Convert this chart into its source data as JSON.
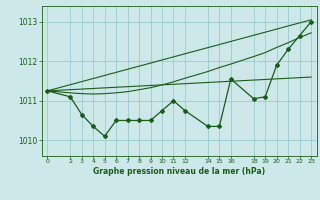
{
  "bg_color": "#cce8e8",
  "grid_color": "#99cccc",
  "line_color": "#1a5c1a",
  "xlabel": "Graphe pression niveau de la mer (hPa)",
  "ylim": [
    1009.6,
    1013.4
  ],
  "xlim": [
    -0.5,
    23.5
  ],
  "yticks": [
    1010,
    1011,
    1012,
    1013
  ],
  "xticks": [
    0,
    2,
    3,
    4,
    5,
    6,
    7,
    8,
    9,
    10,
    11,
    12,
    14,
    15,
    16,
    18,
    19,
    20,
    21,
    22,
    23
  ],
  "xtick_labels": [
    "0",
    "2",
    "3",
    "4",
    "5",
    "6",
    "7",
    "8",
    "9",
    "10",
    "11",
    "12",
    "14",
    "15",
    "16",
    "18",
    "19",
    "20",
    "21",
    "22",
    "23"
  ],
  "series_main": {
    "x": [
      0,
      2,
      3,
      4,
      5,
      6,
      7,
      8,
      9,
      10,
      11,
      12,
      14,
      15,
      16,
      18,
      19,
      20,
      21,
      22,
      23
    ],
    "y": [
      1011.25,
      1011.1,
      1010.65,
      1010.35,
      1010.1,
      1010.5,
      1010.5,
      1010.5,
      1010.5,
      1010.75,
      1011.0,
      1010.75,
      1010.35,
      1010.35,
      1011.55,
      1011.05,
      1011.1,
      1011.9,
      1012.3,
      1012.65,
      1013.0
    ]
  },
  "series_line1": {
    "x": [
      0,
      23
    ],
    "y": [
      1011.25,
      1013.05
    ]
  },
  "series_line2": {
    "x": [
      0,
      23
    ],
    "y": [
      1011.25,
      1011.6
    ]
  },
  "series_line3": {
    "x": [
      0,
      2,
      3,
      4,
      5,
      6,
      7,
      8,
      9,
      10,
      11,
      12,
      14,
      15,
      16,
      18,
      19,
      20,
      21,
      22,
      23
    ],
    "y": [
      1011.25,
      1011.2,
      1011.18,
      1011.17,
      1011.18,
      1011.2,
      1011.23,
      1011.28,
      1011.33,
      1011.4,
      1011.48,
      1011.57,
      1011.74,
      1011.84,
      1011.93,
      1012.12,
      1012.22,
      1012.35,
      1012.47,
      1012.6,
      1012.72
    ]
  }
}
